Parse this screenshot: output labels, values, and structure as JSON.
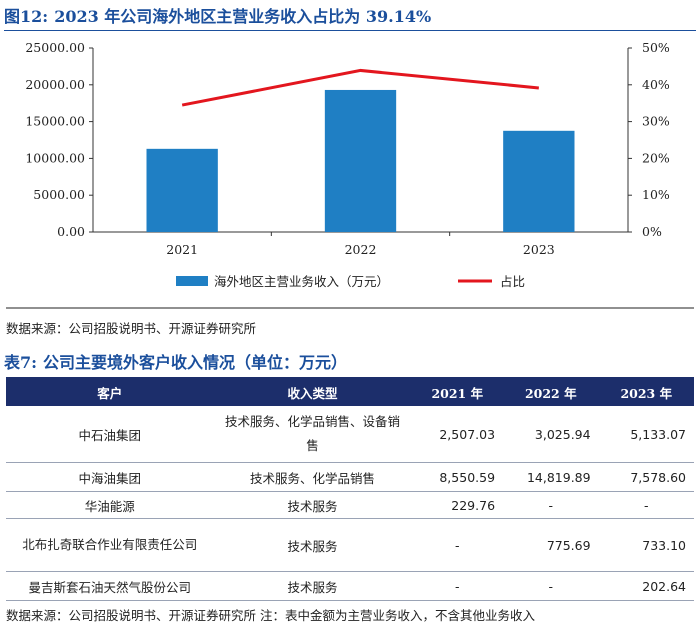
{
  "figure": {
    "label": "图12:",
    "title": "2023 年公司海外地区主营业务收入占比为 39.14%"
  },
  "chart_data": {
    "type": "bar",
    "categories": [
      "2021",
      "2022",
      "2023"
    ],
    "series": [
      {
        "name": "海外地区主营业务收入（万元）",
        "type": "bar",
        "axis": "left",
        "values": [
          11300,
          19300,
          13750
        ],
        "color": "#1f7fc4"
      },
      {
        "name": "占比",
        "type": "line",
        "axis": "right",
        "values": [
          34.5,
          43.9,
          39.14
        ],
        "color": "#e3161e"
      }
    ],
    "ylim_left": [
      0,
      25000
    ],
    "yticks_left": [
      "0.00",
      "5000.00",
      "10000.00",
      "15000.00",
      "20000.00",
      "25000.00"
    ],
    "ylim_right": [
      0,
      50
    ],
    "yticks_right": [
      "0%",
      "10%",
      "20%",
      "30%",
      "40%",
      "50%"
    ],
    "legend_position": "bottom",
    "grid": false
  },
  "source_1": "数据来源：公司招股说明书、开源证券研究所",
  "table": {
    "label": "表7:",
    "title": "公司主要境外客户收入情况（单位：万元）",
    "headers": [
      "客户",
      "收入类型",
      "2021 年",
      "2022 年",
      "2023 年"
    ],
    "rows": [
      {
        "customer": "中石油集团",
        "type": "技术服务、化学品销售、设备销售",
        "y2021": "2,507.03",
        "y2022": "3,025.94",
        "y2023": "5,133.07"
      },
      {
        "customer": "中海油集团",
        "type": "技术服务、化学品销售",
        "y2021": "8,550.59",
        "y2022": "14,819.89",
        "y2023": "7,578.60"
      },
      {
        "customer": "华油能源",
        "type": "技术服务",
        "y2021": "229.76",
        "y2022": "-",
        "y2023": "-"
      },
      {
        "customer": "北布扎奇联合作业有限责任公司",
        "type": "技术服务",
        "y2021": "-",
        "y2022": "775.69",
        "y2023": "733.10"
      },
      {
        "customer": "曼吉斯套石油天然气股份公司",
        "type": "技术服务",
        "y2021": "-",
        "y2022": "-",
        "y2023": "202.64"
      }
    ]
  },
  "source_2": "数据来源：公司招股说明书、开源证券研究所 注：表中金额为主营业务收入，不含其他业务收入"
}
